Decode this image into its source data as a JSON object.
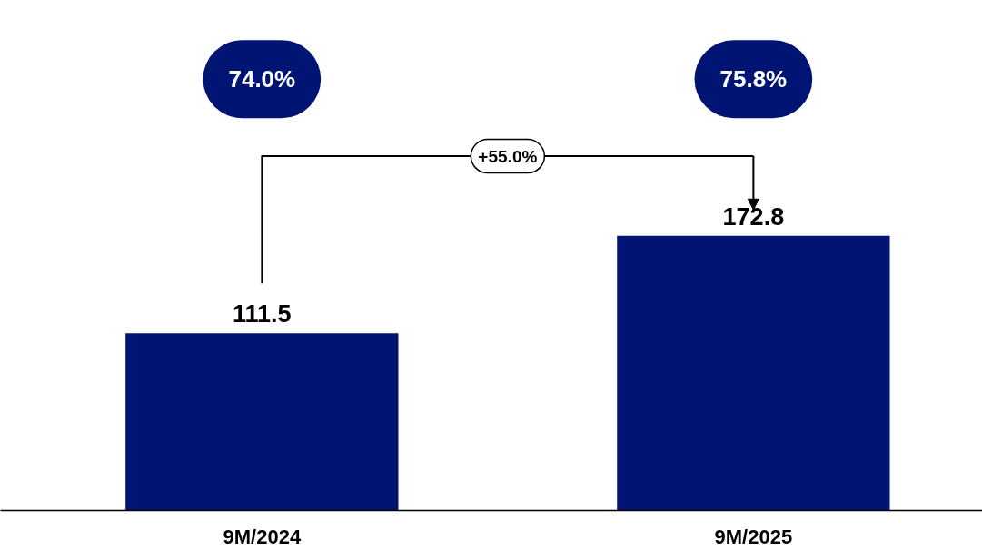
{
  "chart_data": {
    "type": "bar",
    "categories": [
      "9M/2024",
      "9M/2025"
    ],
    "series": [
      {
        "color": "#001473",
        "values": [
          111.5,
          172.8
        ]
      }
    ],
    "data_labels": true,
    "grid": false,
    "tick_labels": "x",
    "annotations": [
      "74.0%",
      "75.8%",
      "+55.0%"
    ]
  }
}
